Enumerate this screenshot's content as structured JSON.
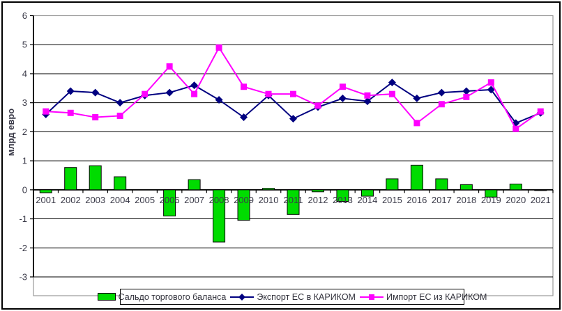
{
  "chart_data": {
    "type": "combo_bar_line",
    "title": "",
    "ylabel": "млрд евро",
    "xlabel": "",
    "ylim": [
      -3,
      6
    ],
    "yticks": [
      6,
      5,
      4,
      3,
      2,
      1,
      0,
      -1,
      -2,
      -3
    ],
    "grid": true,
    "legend_position": "bottom",
    "categories": [
      "2001",
      "2002",
      "2003",
      "2004",
      "2005",
      "2006",
      "2007",
      "2008",
      "2009",
      "2010",
      "2011",
      "2012",
      "2013",
      "2014",
      "2015",
      "2016",
      "2017",
      "2018",
      "2019",
      "2020",
      "2021"
    ],
    "series": [
      {
        "name": "Сальдо торгового баланса",
        "type": "bar",
        "color": "#00dc00",
        "border_color": "#000000",
        "values": [
          -0.1,
          0.77,
          0.83,
          0.45,
          0,
          -0.9,
          0.35,
          -1.8,
          -1.05,
          0.05,
          -0.85,
          -0.07,
          -0.4,
          -0.22,
          0.38,
          0.85,
          0.38,
          0.18,
          -0.25,
          0.2,
          -0.02
        ]
      },
      {
        "name": "Экспорт ЕС в КАРИКОМ",
        "type": "line",
        "marker": "diamond",
        "color": "#000080",
        "values": [
          2.6,
          3.4,
          3.35,
          3.0,
          3.25,
          3.35,
          3.6,
          3.1,
          2.5,
          3.25,
          2.45,
          2.85,
          3.15,
          3.05,
          3.7,
          3.15,
          3.35,
          3.4,
          3.45,
          2.3,
          2.65
        ]
      },
      {
        "name": "Импорт ЕС из КАРИКОМ",
        "type": "line",
        "marker": "square",
        "color": "#ff00ff",
        "values": [
          2.7,
          2.65,
          2.5,
          2.55,
          3.3,
          4.25,
          3.3,
          4.9,
          3.55,
          3.3,
          3.3,
          2.9,
          3.55,
          3.25,
          3.3,
          2.3,
          2.95,
          3.2,
          3.7,
          2.1,
          2.7
        ]
      }
    ],
    "colors": {
      "axis_text": "#3a3a48",
      "gridline": "#000000",
      "plot_border": "#9a9a9a",
      "axis_line": "#000000"
    }
  }
}
